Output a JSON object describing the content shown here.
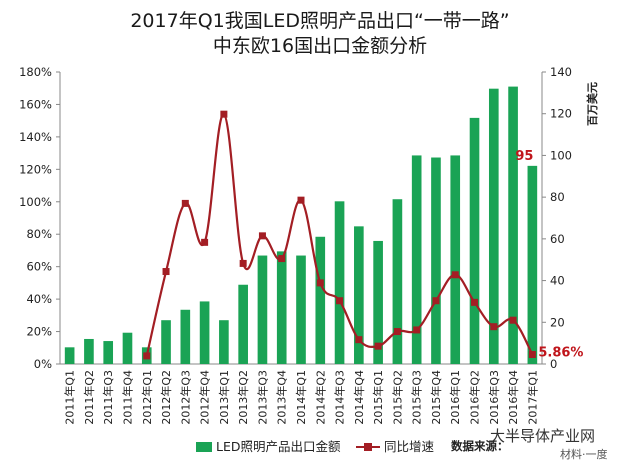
{
  "chart_data": {
    "type": "bar",
    "title": "2017年Q1我国LED照明产品出口“一带一路”",
    "subtitle": "中东欧16国出口金额分析",
    "categories": [
      "2011年Q1",
      "2011年Q2",
      "2011年Q3",
      "2011年Q4",
      "2012年Q1",
      "2012年Q2",
      "2012年Q3",
      "2012年Q4",
      "2013年Q1",
      "2013年Q2",
      "2013年Q3",
      "2013年Q4",
      "2014年Q1",
      "2014年Q2",
      "2014年Q3",
      "2014年Q4",
      "2015年Q1",
      "2015年Q2",
      "2015年Q3",
      "2015年Q4",
      "2016年Q1",
      "2016年Q2",
      "2016年Q3",
      "2016年Q4",
      "2017年Q1"
    ],
    "series": [
      {
        "name": "LED照明产品出口金额",
        "axis": "right",
        "color": "#1aa355",
        "values": [
          8,
          12,
          11,
          15,
          8,
          21,
          26,
          30,
          21,
          38,
          52,
          54,
          52,
          61,
          78,
          66,
          59,
          79,
          100,
          99,
          100,
          118,
          132,
          133,
          95
        ]
      },
      {
        "name": "同比增速",
        "axis": "left",
        "color": "#a31e24",
        "values": [
          null,
          null,
          null,
          null,
          5,
          57,
          99,
          75,
          154,
          62,
          79,
          65,
          101,
          50,
          39,
          15,
          11,
          20,
          21,
          39,
          55,
          38,
          23,
          27,
          5.86
        ]
      }
    ],
    "y_left": {
      "min": 0,
      "max": 180,
      "step": 20,
      "suffix": "%"
    },
    "y_right": {
      "min": 0,
      "max": 140,
      "step": 20,
      "label": "百万美元"
    },
    "annotations": [
      {
        "text": "95",
        "category_index": 24,
        "series": 0
      },
      {
        "text": "5.86%",
        "category_index": 24,
        "series": 1
      }
    ],
    "legend_position": "bottom",
    "source": "数据来源：",
    "watermark": "大半导体产业网",
    "watermark2": "材料·一度",
    "grid": false
  }
}
